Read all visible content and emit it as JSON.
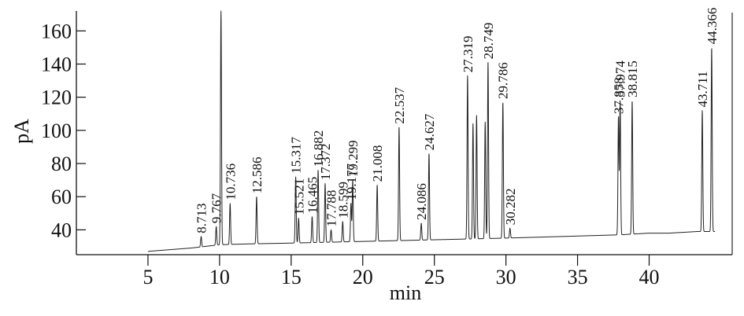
{
  "chart_data": {
    "type": "line",
    "title": "",
    "xlabel": "min",
    "ylabel": "pA",
    "xlim": [
      0,
      45.8
    ],
    "ylim": [
      25,
      172
    ],
    "xticks": [
      5,
      10,
      15,
      20,
      25,
      30,
      35,
      40
    ],
    "yticks": [
      40,
      60,
      80,
      100,
      120,
      140,
      160
    ],
    "grid": false,
    "baseline": [
      [
        0,
        27
      ],
      [
        5,
        27
      ],
      [
        6.5,
        28
      ],
      [
        8,
        29
      ],
      [
        10,
        31
      ],
      [
        12,
        31.5
      ],
      [
        15,
        32
      ],
      [
        20,
        33
      ],
      [
        25,
        34
      ],
      [
        30,
        35
      ],
      [
        32,
        35.5
      ],
      [
        34,
        36
      ],
      [
        36,
        36.5
      ],
      [
        38,
        37
      ],
      [
        40,
        38
      ],
      [
        41.4,
        38
      ],
      [
        43.4,
        39
      ],
      [
        44.6,
        39
      ]
    ],
    "peaks": [
      {
        "rt": 8.713,
        "height": 36,
        "label": "8.713"
      },
      {
        "rt": 9.767,
        "height": 42,
        "label": "9.767"
      },
      {
        "rt": 10.1,
        "height": 172,
        "label": ""
      },
      {
        "rt": 10.736,
        "height": 56,
        "label": "10.736"
      },
      {
        "rt": 12.586,
        "height": 60,
        "label": "12.586"
      },
      {
        "rt": 15.317,
        "height": 72,
        "label": "15.317"
      },
      {
        "rt": 15.521,
        "height": 47,
        "label": "15.521"
      },
      {
        "rt": 16.465,
        "height": 48,
        "label": "16.465"
      },
      {
        "rt": 16.882,
        "height": 76,
        "label": "16.882"
      },
      {
        "rt": 17.372,
        "height": 68,
        "label": "17.372"
      },
      {
        "rt": 17.788,
        "height": 40,
        "label": "17.788"
      },
      {
        "rt": 18.599,
        "height": 45,
        "label": "18.599"
      },
      {
        "rt": 19.177,
        "height": 56,
        "label": "19.177"
      },
      {
        "rt": 19.299,
        "height": 70,
        "label": "19.299"
      },
      {
        "rt": 21.008,
        "height": 67,
        "label": "21.008"
      },
      {
        "rt": 22.537,
        "height": 102,
        "label": "22.537"
      },
      {
        "rt": 24.086,
        "height": 44,
        "label": "24.086"
      },
      {
        "rt": 24.627,
        "height": 86,
        "label": "24.627"
      },
      {
        "rt": 27.319,
        "height": 133,
        "label": "27.319"
      },
      {
        "rt": 27.7,
        "height": 104,
        "label": ""
      },
      {
        "rt": 27.95,
        "height": 109,
        "label": ""
      },
      {
        "rt": 28.55,
        "height": 105,
        "label": ""
      },
      {
        "rt": 28.749,
        "height": 141,
        "label": "28.749"
      },
      {
        "rt": 29.786,
        "height": 117,
        "label": "29.786"
      },
      {
        "rt": 30.282,
        "height": 41,
        "label": "30.282"
      },
      {
        "rt": 37.858,
        "height": 108,
        "label": "37.858"
      },
      {
        "rt": 37.974,
        "height": 118,
        "label": "37.974"
      },
      {
        "rt": 38.815,
        "height": 118,
        "label": "38.815"
      },
      {
        "rt": 43.711,
        "height": 112,
        "label": "43.711"
      },
      {
        "rt": 44.366,
        "height": 150,
        "label": "44.366"
      }
    ]
  }
}
